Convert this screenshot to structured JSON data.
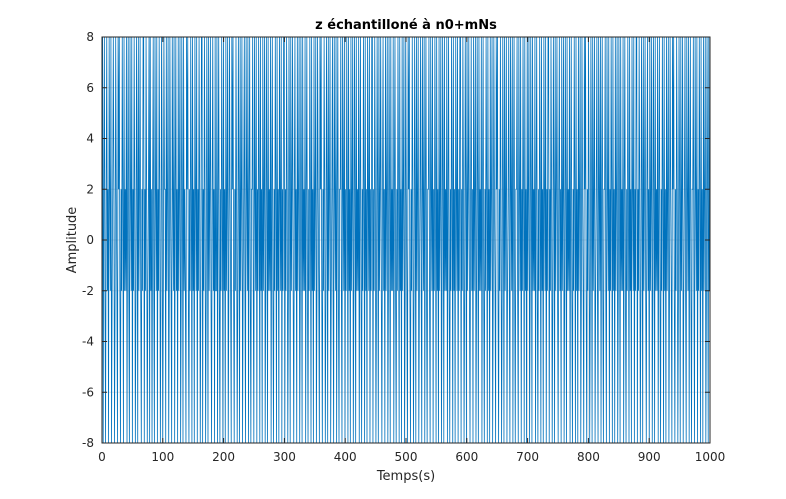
{
  "chart_data": {
    "type": "line",
    "title": "z échantilloné à n0+mNs",
    "xlabel": "Temps(s)",
    "ylabel": "Amplitude",
    "xlim": [
      0,
      1000
    ],
    "ylim": [
      -8,
      8
    ],
    "xticks": [
      0,
      100,
      200,
      300,
      400,
      500,
      600,
      700,
      800,
      900,
      1000
    ],
    "yticks": [
      -8,
      -6,
      -4,
      -2,
      0,
      2,
      4,
      6,
      8
    ],
    "grid": true,
    "line_color": "#0072BD",
    "levels": [
      -8,
      -2,
      2,
      8
    ],
    "series": [
      {
        "values": [
          -2,
          8,
          -8,
          2,
          8,
          -2,
          -8,
          2,
          8,
          -2,
          2,
          -8,
          8,
          2,
          -2,
          8,
          -8,
          -2,
          2,
          8,
          2,
          -8,
          -2,
          8,
          2,
          -2,
          -8,
          8,
          2,
          8,
          -2,
          -8,
          2,
          -2,
          8,
          2,
          -8,
          8,
          -2,
          2,
          -2,
          8,
          -8,
          2,
          8,
          -2,
          -8,
          8,
          2,
          -2,
          8,
          -8,
          2,
          -2,
          8,
          2,
          -8,
          -2,
          8,
          2,
          -8,
          8,
          -2,
          2,
          8,
          -2,
          -8,
          2,
          -2,
          8,
          8,
          -8,
          2,
          -2,
          8,
          2,
          -8,
          -2,
          2,
          8,
          -8,
          8,
          -2,
          2,
          -8,
          2,
          8,
          -2,
          -8,
          8,
          2,
          -2,
          8,
          -8,
          2,
          -2,
          8,
          2,
          -8,
          -2,
          8,
          2,
          -8,
          -2,
          8,
          2,
          2,
          -8,
          8,
          -2,
          2,
          8,
          -8,
          -2,
          8,
          2,
          -2,
          -8,
          8,
          2,
          -2,
          8,
          -8,
          2,
          8,
          -2,
          2,
          -8,
          8,
          -2,
          2,
          8,
          -8,
          -2,
          8,
          2,
          -8,
          8,
          -2,
          2,
          -2,
          -8,
          8,
          2,
          8,
          -2,
          -8,
          2,
          -2,
          8,
          2,
          -8,
          8,
          -2,
          2,
          -8,
          8,
          2,
          -2,
          8,
          -8,
          2,
          -2,
          8,
          2,
          -8,
          -2,
          8,
          8,
          -8,
          2,
          -2,
          8,
          2,
          -8,
          -2,
          8,
          2,
          -8,
          8,
          -2,
          2,
          8,
          -2,
          -8,
          2,
          8,
          -2,
          2,
          -8,
          8,
          -2,
          -2,
          8,
          -8,
          2,
          8,
          -2,
          -8,
          2,
          -2,
          8,
          2,
          -8,
          8,
          -2,
          2,
          -8,
          8,
          -2,
          2,
          8,
          -8,
          -2,
          8,
          2,
          -2,
          -8,
          8,
          2,
          8,
          -2,
          -8,
          2,
          -2,
          8,
          2,
          -8,
          -2,
          8,
          2,
          -8,
          8,
          -2,
          2,
          8,
          -8,
          -2,
          2,
          8,
          -2,
          -8,
          8,
          2,
          -2,
          8,
          -8,
          2,
          8,
          -2,
          -8,
          2,
          2,
          8,
          -2,
          -8,
          8,
          2,
          -2,
          8,
          -8,
          2,
          -2,
          8,
          2,
          -8,
          8,
          -2,
          2,
          -8,
          8,
          -2,
          2,
          8,
          -8,
          -2,
          8,
          2,
          -8,
          8,
          -2,
          2,
          -2,
          8,
          -8,
          2,
          8,
          -2,
          -8,
          2,
          -2,
          8,
          2,
          -8,
          8,
          -2,
          2,
          -8,
          8,
          2,
          -2,
          8,
          -8,
          2,
          -2,
          8,
          8,
          -8,
          2,
          -2,
          8,
          2,
          -8,
          -2,
          8,
          2,
          -8,
          8,
          -2,
          2,
          8,
          -2,
          -8,
          2,
          8,
          -2,
          2,
          -8,
          8,
          -2,
          2,
          8,
          -8,
          -2,
          8,
          2,
          -8,
          8,
          -2,
          2,
          -2,
          8,
          -8,
          2,
          8,
          -2,
          -8,
          2,
          -2,
          8,
          2,
          -8,
          8,
          -2,
          2,
          -8,
          8,
          -2,
          2,
          8,
          -8,
          -2,
          8,
          2,
          -2,
          -8,
          8,
          2,
          8,
          -2,
          -8,
          2,
          -2,
          8,
          2,
          -8,
          -2,
          8,
          2,
          -8,
          8,
          -2,
          2,
          8,
          -8,
          -2,
          2,
          8,
          -2,
          -8,
          8,
          2,
          -2,
          8,
          -8,
          2,
          8,
          -2,
          -8,
          2,
          2,
          8,
          -2,
          -8,
          8,
          2,
          -2,
          8,
          -8,
          2,
          -2,
          8,
          2,
          -8,
          8,
          -2,
          2,
          -8,
          8,
          -2,
          2,
          8,
          -8,
          -2,
          8,
          2,
          -8,
          8,
          -2,
          2,
          -2,
          8,
          -8,
          2,
          8,
          -2,
          -8,
          2,
          -2,
          8,
          2,
          -8,
          8,
          -2,
          2,
          -8,
          8,
          2,
          -2,
          8,
          -8,
          2,
          -2,
          8,
          8,
          -8,
          2,
          -2,
          8,
          2,
          -8,
          -2,
          8,
          2,
          -8,
          8,
          -2,
          2,
          8,
          -2,
          -8,
          2,
          8,
          -2,
          2,
          -8,
          8,
          -2,
          2,
          8,
          -8,
          -2,
          8,
          2,
          -8,
          8,
          -2,
          2,
          -2,
          8,
          -8,
          2,
          8,
          -2,
          -8,
          2,
          -2,
          8,
          2,
          -8,
          8,
          -2,
          2,
          -8,
          8,
          -2,
          2,
          8,
          -8,
          -2,
          8,
          2,
          -2,
          -8,
          8,
          2,
          8,
          -2,
          -8,
          2,
          -2,
          8,
          2,
          -8,
          -2,
          8,
          2,
          -8,
          8,
          -2,
          2,
          8,
          -8,
          -2,
          2,
          8,
          -2,
          -8,
          8,
          2,
          -2,
          8,
          -8,
          2,
          8,
          -2,
          -8,
          2,
          2,
          8,
          -2,
          -8,
          8,
          2,
          -2,
          8,
          -8,
          2,
          -2,
          8,
          2,
          -8,
          8,
          -2,
          2,
          -8,
          8,
          -2,
          2,
          8,
          -8,
          -2,
          8,
          2,
          -8,
          8,
          -2,
          2,
          -2,
          8,
          -8,
          2,
          8,
          -2,
          -8,
          2,
          -2,
          8,
          2,
          -8,
          8,
          -2,
          2,
          -8,
          8,
          2,
          -2,
          8,
          -8,
          2,
          -2,
          8,
          8,
          -8,
          2,
          -2,
          8,
          2,
          -8,
          -2,
          8,
          2,
          -8,
          8,
          -2,
          2,
          8,
          -2,
          -8,
          2,
          8,
          -2,
          2,
          -8,
          8,
          -2,
          2,
          8,
          -8,
          -2,
          8,
          2,
          -8,
          8,
          -2,
          2,
          -2,
          8,
          -8,
          2,
          8,
          -2,
          -8,
          2,
          -2,
          8,
          2,
          -8,
          8,
          -2,
          2,
          -8,
          8,
          -2,
          2,
          8,
          -8,
          -2,
          8,
          2,
          -2,
          -8,
          8,
          2,
          8,
          -2,
          -8,
          2,
          -2,
          8,
          2,
          -8,
          -2,
          8,
          2,
          -8,
          8,
          -2,
          2,
          8,
          -8,
          -2,
          2,
          8,
          -2,
          -8,
          8,
          2,
          -2,
          8,
          -8,
          2,
          8,
          -2,
          -8,
          2,
          2,
          8,
          -2,
          -8,
          8,
          2,
          -2,
          8,
          -8,
          2,
          -2,
          8,
          2,
          -8,
          8,
          -2,
          2,
          -8,
          8,
          -2,
          2,
          8,
          -8,
          -2,
          8,
          2,
          -8,
          8,
          -2,
          2,
          -2,
          8,
          -8,
          2,
          8,
          -2,
          -8,
          2,
          -2,
          8,
          2,
          -8,
          8,
          -2,
          2,
          -8,
          8,
          2,
          -2,
          8,
          -8,
          2,
          -2,
          8,
          8,
          -8,
          2,
          -2,
          8,
          2,
          -8,
          -2,
          8,
          2,
          -8,
          8,
          -2,
          2,
          8,
          -2,
          -8,
          2,
          8,
          -2,
          2,
          -8,
          8,
          -2,
          2,
          8,
          -8,
          -2,
          8,
          2,
          -8,
          8,
          -2,
          2,
          -2,
          8,
          -8,
          2,
          8,
          -2,
          -8,
          2,
          -2,
          8,
          2,
          -8,
          8,
          -2,
          2,
          -8,
          8,
          -2,
          2,
          8,
          -8,
          -2,
          8,
          2,
          -2,
          -8,
          8,
          2,
          8,
          -2,
          -8,
          2,
          -2,
          8,
          2,
          -8,
          -2,
          8,
          2,
          -8,
          8,
          -2,
          2,
          8,
          -8,
          -2,
          2,
          8,
          -2,
          -8,
          8,
          2,
          -2,
          8,
          -8,
          2,
          8,
          -2,
          -8,
          2,
          2,
          8,
          -2,
          -8,
          8,
          2,
          -2,
          8,
          -8,
          2,
          -2,
          8,
          2,
          -8,
          8,
          -2,
          2,
          -8,
          8,
          -2,
          2,
          8,
          -8,
          -2,
          8,
          2,
          -8,
          8,
          -2,
          2,
          -2,
          8,
          -8,
          2,
          8,
          -2,
          -8,
          2,
          -2,
          8,
          2,
          -8,
          8,
          -2,
          2,
          -8,
          8,
          2,
          -2,
          8,
          -8,
          2,
          -2,
          8,
          8,
          -8,
          2,
          -2,
          8,
          2,
          -8,
          -2,
          8,
          2,
          -8,
          8,
          -2,
          2,
          8,
          -2,
          -8,
          2,
          8,
          -2,
          2,
          -8,
          8,
          -2,
          2,
          8,
          -8,
          -2,
          8,
          2,
          -8,
          8,
          -2,
          2,
          -2,
          8,
          -8,
          2,
          8,
          -2,
          -8,
          2,
          -2,
          8,
          2,
          -8,
          8,
          -2,
          2,
          -8,
          8,
          -2,
          2,
          8,
          -8,
          -2,
          8,
          2,
          -2,
          -8,
          8,
          2,
          8,
          -2,
          -8,
          2,
          -2,
          8,
          2,
          -8,
          -2,
          8,
          2,
          -8,
          8,
          -2,
          2,
          8,
          -8,
          -2,
          2,
          8,
          -2,
          -8,
          8,
          2,
          -2,
          8,
          -8,
          2,
          8,
          -2,
          -8,
          2,
          2,
          8,
          -2,
          -8,
          8,
          2,
          -2,
          8,
          -8,
          2,
          -2,
          8,
          2,
          -8,
          8,
          -2,
          2,
          -8,
          8,
          -2,
          2,
          8,
          -8,
          -2,
          8,
          2,
          -8,
          8,
          -2,
          2
        ]
      }
    ]
  }
}
